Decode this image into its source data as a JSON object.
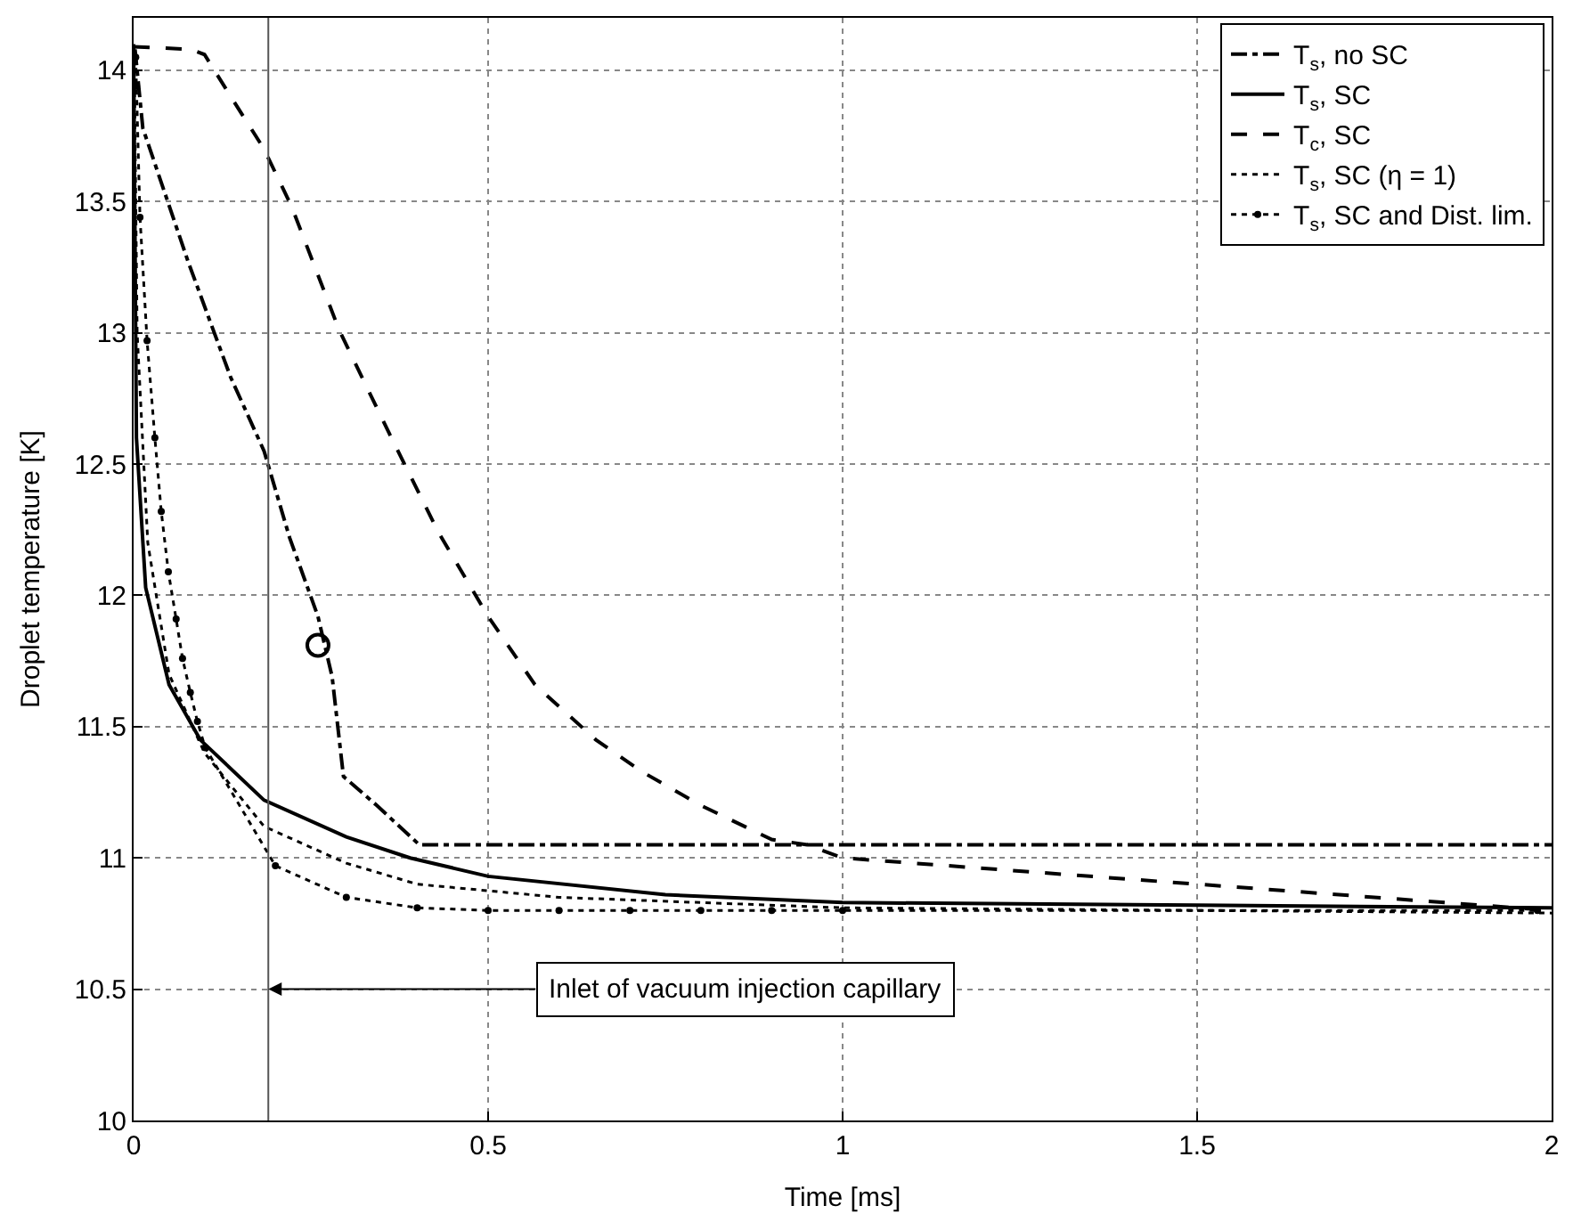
{
  "chart_data": {
    "type": "line",
    "xlabel": "Time [ms]",
    "ylabel": "Droplet temperature [K]",
    "xlim": [
      0,
      2
    ],
    "ylim": [
      10,
      14.2
    ],
    "xticks": [
      0,
      0.5,
      1,
      1.5,
      2
    ],
    "yticks": [
      10,
      10.5,
      11,
      11.5,
      12,
      12.5,
      13,
      13.5,
      14
    ],
    "grid": true,
    "legend": "top right",
    "series": [
      {
        "name": "T$_{s}$, no SC",
        "color": "#000000",
        "line_style": "dashdot",
        "marker": "none",
        "x": [
          0.002,
          0.013,
          0.077,
          0.137,
          0.184,
          0.22,
          0.26,
          0.28,
          0.296,
          0.343,
          0.403,
          1,
          1.5,
          2
        ],
        "values": [
          14.08,
          13.78,
          13.27,
          12.83,
          12.55,
          12.22,
          11.92,
          11.69,
          11.31,
          11.2,
          11.05,
          11.05,
          11.05,
          11.05
        ]
      },
      {
        "name": "T$_{s}$, SC",
        "color": "#000000",
        "line_style": "solid",
        "marker": "none",
        "x": [
          0,
          0.004,
          0.017,
          0.05,
          0.094,
          0.184,
          0.3,
          0.39,
          0.5,
          0.75,
          1,
          1.5,
          2
        ],
        "values": [
          14.1,
          12.6,
          12.03,
          11.66,
          11.45,
          11.22,
          11.08,
          11.0,
          10.93,
          10.86,
          10.83,
          10.82,
          10.81
        ]
      },
      {
        "name": "T$_{c}$, SC",
        "color": "#000000",
        "line_style": "dashed",
        "marker": "none",
        "x": [
          0,
          0.08,
          0.1,
          0.137,
          0.184,
          0.223,
          0.29,
          0.36,
          0.43,
          0.5,
          0.566,
          0.652,
          0.716,
          0.8,
          0.9,
          0.95,
          1,
          1.5,
          2
        ],
        "values": [
          14.09,
          14.08,
          14.06,
          13.9,
          13.7,
          13.48,
          13.01,
          12.62,
          12.24,
          11.92,
          11.66,
          11.45,
          11.33,
          11.2,
          11.07,
          11.05,
          11.0,
          10.9,
          10.8
        ]
      },
      {
        "name": "T$_{s}$, SC (η = 1)",
        "color": "#000000",
        "line_style": "dotted",
        "marker": "none",
        "x": [
          0.001,
          0.005,
          0.02,
          0.05,
          0.1,
          0.184,
          0.3,
          0.4,
          0.6,
          1,
          2
        ],
        "values": [
          14.0,
          13.0,
          12.2,
          11.7,
          11.4,
          11.12,
          10.98,
          10.9,
          10.85,
          10.81,
          10.79
        ]
      },
      {
        "name": "T$_{s}$, SC and Dist. lim.",
        "color": "#000000",
        "line_style": "dotted",
        "marker": "circle",
        "x": [
          0.003,
          0.004,
          0.009,
          0.019,
          0.03,
          0.039,
          0.049,
          0.06,
          0.069,
          0.08,
          0.09,
          0.101,
          0.2,
          0.3,
          0.4,
          0.5,
          0.6,
          0.7,
          0.8,
          0.9,
          1,
          1.98
        ],
        "values": [
          14.05,
          13.94,
          13.44,
          12.97,
          12.6,
          12.32,
          12.09,
          11.91,
          11.76,
          11.63,
          11.52,
          11.42,
          10.97,
          10.85,
          10.81,
          10.8,
          10.8,
          10.8,
          10.8,
          10.8,
          10.8,
          10.8
        ]
      },
      {
        "type": "scatter",
        "color": "#000000",
        "marker": "circle",
        "x": [
          0.26
        ],
        "values": [
          11.81
        ]
      }
    ],
    "ref_lines": [
      {
        "axis": "x",
        "value": 0.19,
        "color": "#555555"
      }
    ],
    "annotations": [
      {
        "text": "Inlet of vacuum injection capillary",
        "x": 0.19,
        "y": 10.5
      }
    ]
  }
}
